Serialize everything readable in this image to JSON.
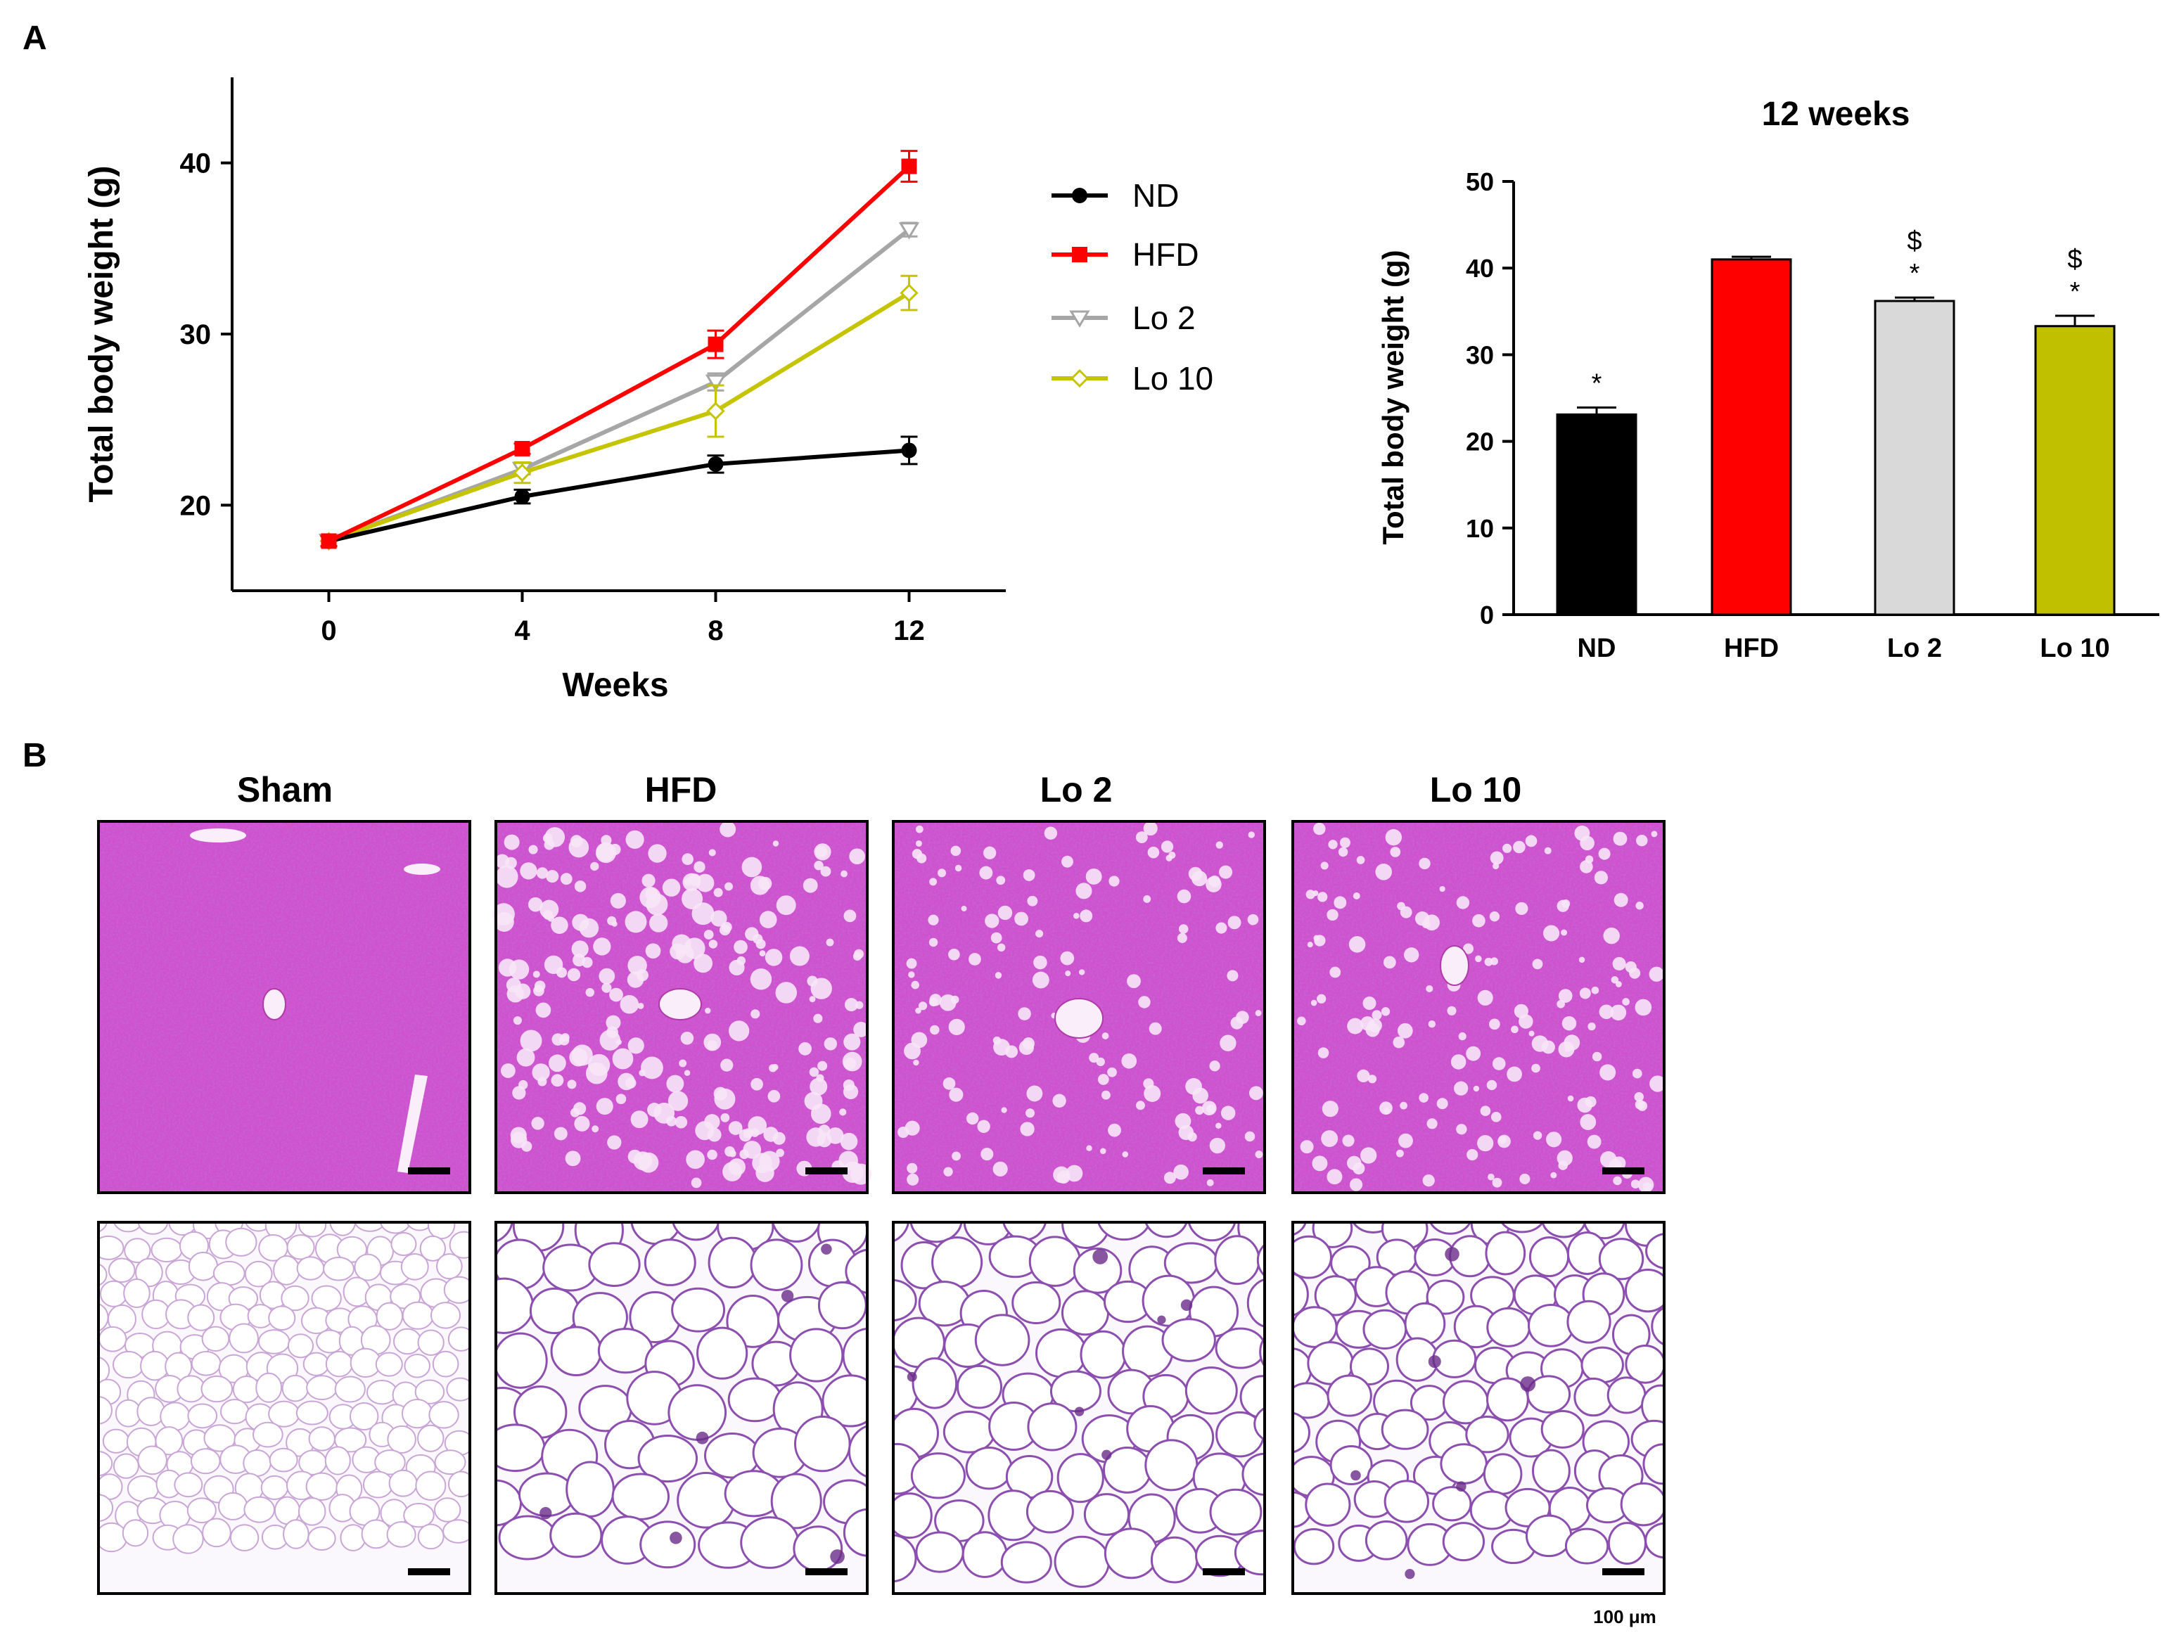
{
  "panels": {
    "a_label": "A",
    "b_label": "B"
  },
  "colors": {
    "nd": "#000000",
    "hfd": "#ff0000",
    "lo2": "#a6a6a6",
    "lo10": "#c4c400",
    "lo2_bar": "#d9d9d9",
    "lo10_bar": "#c0c000",
    "liver_stain": "#d84cd8",
    "adipose_stain": "#8a3aa8"
  },
  "chart_data": [
    {
      "type": "line",
      "title": "",
      "xlabel": "Weeks",
      "ylabel": "Total body weight (g)",
      "x": [
        0,
        4,
        8,
        12
      ],
      "xlim": [
        -2,
        14
      ],
      "ylim": [
        15,
        45
      ],
      "xticks": [
        "0",
        "4",
        "8",
        "12"
      ],
      "yticks": [
        "20",
        "30",
        "40"
      ],
      "legend_position": "right",
      "series": [
        {
          "name": "ND",
          "values": [
            17.9,
            20.5,
            22.4,
            23.2
          ],
          "errors": [
            0.3,
            0.4,
            0.5,
            0.8
          ],
          "marker": "circle"
        },
        {
          "name": "HFD",
          "values": [
            17.9,
            23.3,
            29.4,
            39.8
          ],
          "errors": [
            0.3,
            0.3,
            0.8,
            0.9
          ],
          "marker": "square"
        },
        {
          "name": "Lo 2",
          "values": [
            17.9,
            22.1,
            27.2,
            36.1
          ],
          "errors": [
            0.3,
            0.3,
            0.5,
            0.4
          ],
          "marker": "triangle-down"
        },
        {
          "name": "Lo 10",
          "values": [
            17.9,
            21.9,
            25.5,
            32.4
          ],
          "errors": [
            0.3,
            0.6,
            1.5,
            1.0
          ],
          "marker": "diamond"
        }
      ]
    },
    {
      "type": "bar",
      "title": "12 weeks",
      "xlabel": "",
      "ylabel": "Total body weight (g)",
      "categories": [
        "ND",
        "HFD",
        "Lo 2",
        "Lo 10"
      ],
      "values": [
        23.1,
        41.0,
        36.2,
        33.3
      ],
      "errors": [
        0.8,
        0.3,
        0.4,
        1.2
      ],
      "annotations": [
        "*",
        "",
        "$\n*",
        "$\n*"
      ],
      "ylim": [
        0,
        50
      ],
      "yticks": [
        "0",
        "10",
        "20",
        "30",
        "40",
        "50"
      ]
    }
  ],
  "micrographs": {
    "columns": [
      "Sham",
      "HFD",
      "Lo 2",
      "Lo 10"
    ],
    "scale_bar_label": "100 μm"
  }
}
